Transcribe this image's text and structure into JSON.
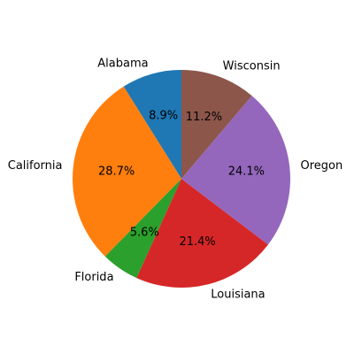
{
  "chart_data": {
    "type": "pie",
    "title": "",
    "start_angle_deg": 90,
    "direction": "counterclockwise",
    "slices": [
      {
        "label": "Alabama",
        "percent": 8.9,
        "percent_label": "8.9%",
        "color": "#1f77b4"
      },
      {
        "label": "California",
        "percent": 28.7,
        "percent_label": "28.7%",
        "color": "#ff7f0e"
      },
      {
        "label": "Florida",
        "percent": 5.6,
        "percent_label": "5.6%",
        "color": "#2ca02c"
      },
      {
        "label": "Louisiana",
        "percent": 21.4,
        "percent_label": "21.4%",
        "color": "#d62728"
      },
      {
        "label": "Oregon",
        "percent": 24.1,
        "percent_label": "24.1%",
        "color": "#9467bd"
      },
      {
        "label": "Wisconsin",
        "percent": 11.2,
        "percent_label": "11.2%",
        "color": "#8c564b"
      }
    ]
  }
}
